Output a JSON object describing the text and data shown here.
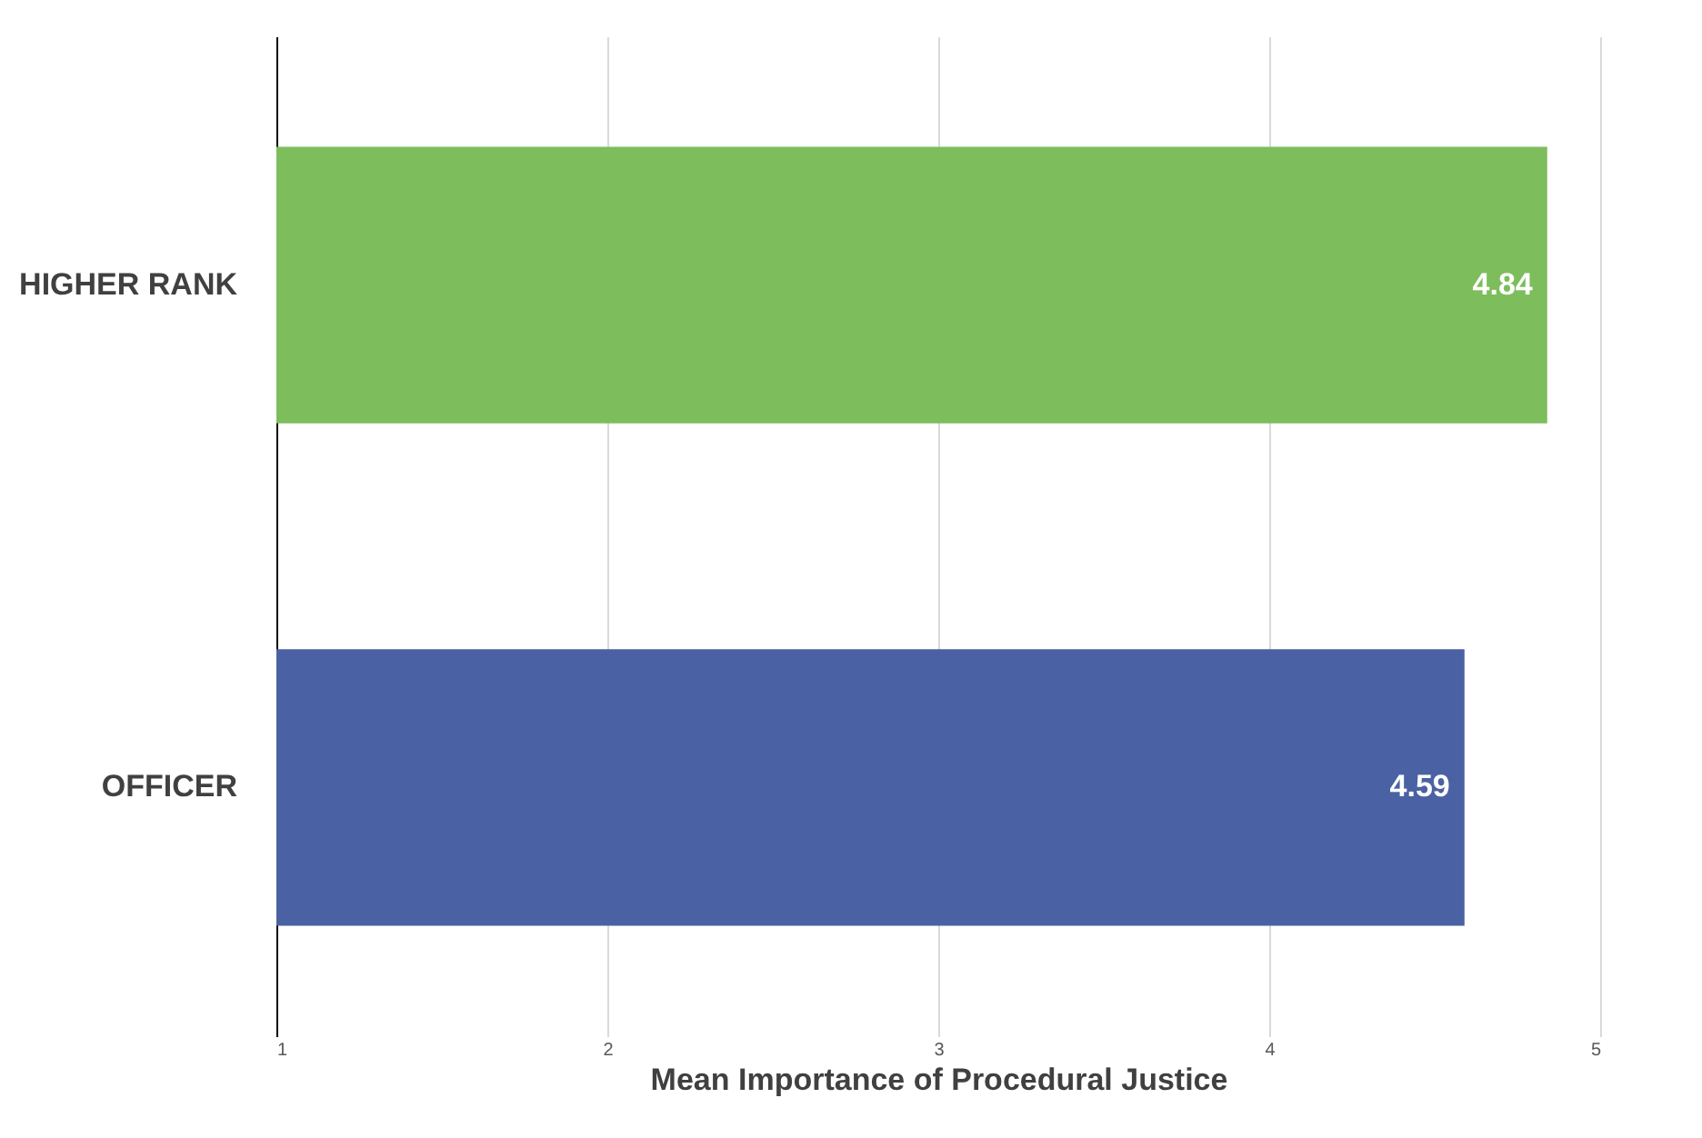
{
  "chart_data": {
    "type": "bar",
    "orientation": "horizontal",
    "xlabel": "Mean Importance of Procedural Justice",
    "categories": [
      "HIGHER RANK",
      "OFFICER"
    ],
    "values": [
      4.84,
      4.59
    ],
    "colors": [
      "#7dbd5c",
      "#4a62a3"
    ],
    "xlim": [
      1,
      5
    ],
    "xticks": [
      1,
      2,
      3,
      4,
      5
    ],
    "grid": "x",
    "data_labels": true
  }
}
